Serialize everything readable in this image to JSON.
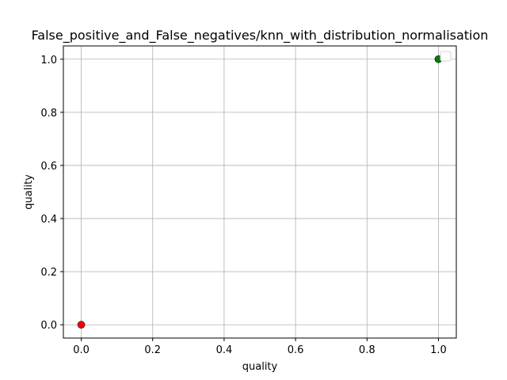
{
  "chart_data": {
    "type": "scatter",
    "title": "False_positive_and_False_negatives/knn_with_distribution_normalisation",
    "xlabel": "quality",
    "ylabel": "quality",
    "xlim": [
      -0.05,
      1.05
    ],
    "ylim": [
      -0.05,
      1.05
    ],
    "xticks": [
      "0.0",
      "0.2",
      "0.4",
      "0.6",
      "0.8",
      "1.0"
    ],
    "yticks": [
      "0.0",
      "0.2",
      "0.4",
      "0.6",
      "0.8",
      "1.0"
    ],
    "grid": true,
    "legend": {
      "location": "upper right",
      "entries": []
    },
    "series": [
      {
        "color": "#008000",
        "points": [
          {
            "x": 1.0,
            "y": 1.0
          }
        ]
      },
      {
        "color": "#ff0000",
        "points": [
          {
            "x": 0.0,
            "y": 0.0
          }
        ]
      }
    ]
  }
}
